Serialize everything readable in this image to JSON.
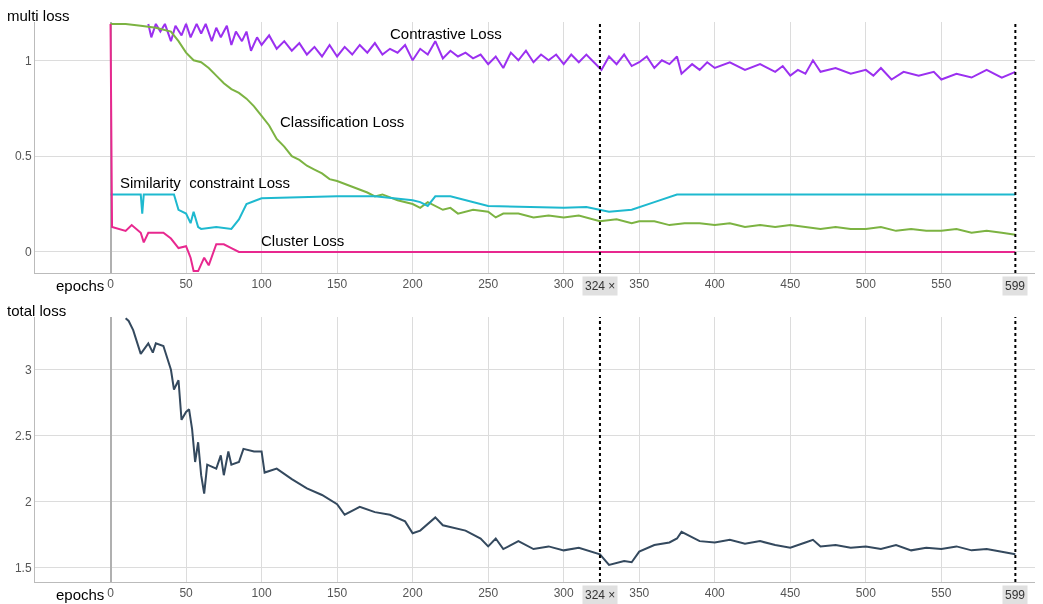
{
  "chart_data": [
    {
      "type": "line",
      "xlabel": "epochs",
      "ylabel": "multi loss",
      "xlim": [
        -50,
        612
      ],
      "ylim": [
        -0.11,
        1.2
      ],
      "xticks": [
        0,
        50,
        100,
        150,
        200,
        250,
        300,
        350,
        400,
        450,
        500,
        550
      ],
      "yticks": [
        0,
        0.5,
        1
      ],
      "grid": true,
      "series": [
        {
          "color": "#9b30f0",
          "x": [
            25,
            27,
            30,
            33,
            36,
            40,
            43,
            47,
            50,
            53,
            57,
            60,
            63,
            67,
            70,
            73,
            77,
            80,
            83,
            87,
            90,
            93,
            97,
            100,
            105,
            110,
            115,
            120,
            125,
            130,
            135,
            140,
            145,
            150,
            155,
            160,
            165,
            170,
            175,
            180,
            185,
            190,
            195,
            200,
            205,
            210,
            215,
            220,
            225,
            230,
            235,
            240,
            245,
            250,
            255,
            260,
            265,
            270,
            275,
            280,
            285,
            290,
            295,
            300,
            305,
            310,
            315,
            320,
            325,
            330,
            335,
            340,
            345,
            350,
            355,
            360,
            365,
            370,
            375,
            378,
            385,
            390,
            395,
            400,
            410,
            420,
            430,
            440,
            445,
            450,
            455,
            460,
            465,
            470,
            480,
            490,
            500,
            505,
            510,
            517,
            525,
            535,
            545,
            550,
            560,
            570,
            580,
            590,
            599
          ],
          "values": [
            1.19,
            1.12,
            1.19,
            1.15,
            1.19,
            1.1,
            1.18,
            1.13,
            1.19,
            1.12,
            1.19,
            1.14,
            1.19,
            1.1,
            1.17,
            1.12,
            1.18,
            1.08,
            1.15,
            1.1,
            1.15,
            1.05,
            1.12,
            1.08,
            1.13,
            1.06,
            1.1,
            1.05,
            1.09,
            1.03,
            1.07,
            1.02,
            1.08,
            1.02,
            1.07,
            1.03,
            1.08,
            1.04,
            1.09,
            1.03,
            1.06,
            1.04,
            1.08,
            1.0,
            1.06,
            1.03,
            1.1,
            1.01,
            1.05,
            1.02,
            1.04,
            1.01,
            1.03,
            0.98,
            1.02,
            0.96,
            1.04,
            1.0,
            1.05,
            0.99,
            1.03,
            1.0,
            1.03,
            0.98,
            1.03,
            0.99,
            1.03,
            0.99,
            0.95,
            1.02,
            0.98,
            1.03,
            0.97,
            0.99,
            1.02,
            0.96,
            1.0,
            0.98,
            1.02,
            0.93,
            0.98,
            0.95,
            0.99,
            0.96,
            0.99,
            0.95,
            0.98,
            0.94,
            0.97,
            0.92,
            0.95,
            0.93,
            1.0,
            0.94,
            0.96,
            0.93,
            0.95,
            0.92,
            0.96,
            0.9,
            0.94,
            0.92,
            0.94,
            0.9,
            0.93,
            0.91,
            0.95,
            0.91,
            0.94
          ]
        },
        {
          "color": "#7cb342",
          "x": [
            0,
            10,
            20,
            30,
            40,
            45,
            50,
            55,
            60,
            65,
            70,
            75,
            80,
            85,
            90,
            95,
            100,
            105,
            110,
            115,
            120,
            125,
            130,
            135,
            140,
            145,
            150,
            160,
            170,
            175,
            180,
            190,
            200,
            205,
            210,
            220,
            225,
            230,
            240,
            250,
            255,
            260,
            270,
            280,
            290,
            300,
            310,
            324,
            335,
            345,
            350,
            360,
            370,
            380,
            390,
            400,
            410,
            420,
            430,
            440,
            450,
            460,
            470,
            480,
            490,
            500,
            510,
            520,
            530,
            540,
            550,
            560,
            570,
            580,
            590,
            599
          ],
          "values": [
            1.19,
            1.19,
            1.18,
            1.17,
            1.15,
            1.1,
            1.04,
            1.0,
            0.99,
            0.96,
            0.92,
            0.88,
            0.85,
            0.83,
            0.8,
            0.76,
            0.71,
            0.66,
            0.59,
            0.55,
            0.5,
            0.48,
            0.45,
            0.43,
            0.41,
            0.38,
            0.37,
            0.34,
            0.31,
            0.29,
            0.3,
            0.27,
            0.25,
            0.23,
            0.26,
            0.22,
            0.23,
            0.2,
            0.22,
            0.21,
            0.18,
            0.2,
            0.2,
            0.18,
            0.19,
            0.18,
            0.19,
            0.16,
            0.17,
            0.15,
            0.16,
            0.16,
            0.14,
            0.15,
            0.15,
            0.14,
            0.15,
            0.13,
            0.14,
            0.13,
            0.14,
            0.13,
            0.12,
            0.13,
            0.12,
            0.12,
            0.13,
            0.11,
            0.12,
            0.11,
            0.11,
            0.12,
            0.1,
            0.11,
            0.1,
            0.09
          ]
        },
        {
          "color": "#1eb9cf",
          "x": [
            0,
            20,
            21,
            22,
            42,
            45,
            50,
            53,
            55,
            58,
            60,
            70,
            80,
            85,
            90,
            100,
            150,
            175,
            200,
            205,
            210,
            215,
            225,
            250,
            300,
            315,
            330,
            345,
            360,
            375,
            599
          ],
          "values": [
            0.3,
            0.3,
            0.2,
            0.3,
            0.3,
            0.22,
            0.2,
            0.15,
            0.21,
            0.13,
            0.12,
            0.13,
            0.12,
            0.17,
            0.25,
            0.28,
            0.29,
            0.29,
            0.27,
            0.26,
            0.24,
            0.29,
            0.29,
            0.24,
            0.23,
            0.235,
            0.21,
            0.22,
            0.26,
            0.3,
            0.3
          ]
        },
        {
          "color": "#e8288f",
          "x": [
            0,
            1,
            10,
            14,
            20,
            22,
            25,
            35,
            40,
            45,
            50,
            53,
            55,
            58,
            62,
            65,
            70,
            75,
            80,
            85,
            599
          ],
          "values": [
            1.19,
            0.13,
            0.11,
            0.14,
            0.1,
            0.05,
            0.1,
            0.1,
            0.07,
            0.02,
            0.03,
            -0.03,
            -0.1,
            -0.1,
            -0.03,
            -0.07,
            0.04,
            0.04,
            0.02,
            0.0,
            0.0
          ]
        }
      ],
      "annotations": [
        {
          "text": "Contrastive Loss",
          "x": 184,
          "y": 1.08
        },
        {
          "text": "Classification Loss",
          "x": 111,
          "y": 0.62
        },
        {
          "text": "Similarity  constraint Loss",
          "x": 5,
          "y": 0.3
        },
        {
          "text": "Cluster Loss",
          "x": 98,
          "y": 0.0
        }
      ],
      "ref_lines": [
        {
          "axis": "x",
          "value": 324,
          "label": "324 ×",
          "color": "#000000",
          "line_style": "dotted"
        },
        {
          "axis": "x",
          "value": 599,
          "label": "599",
          "color": "#000000",
          "line_style": "dotted"
        }
      ]
    },
    {
      "type": "line",
      "xlabel": "epochs",
      "ylabel": "total loss",
      "xlim": [
        -50,
        612
      ],
      "ylim": [
        1.39,
        3.4
      ],
      "xticks": [
        0,
        50,
        100,
        150,
        200,
        250,
        300,
        350,
        400,
        450,
        500,
        550
      ],
      "yticks": [
        1.5,
        2,
        2.5,
        3
      ],
      "grid": true,
      "series": [
        {
          "color": "#34495e",
          "x": [
            10,
            12,
            15,
            20,
            25,
            28,
            30,
            35,
            40,
            42,
            45,
            47,
            50,
            52,
            54,
            56,
            58,
            60,
            62,
            64,
            70,
            73,
            75,
            78,
            80,
            85,
            88,
            95,
            100,
            102,
            110,
            120,
            130,
            140,
            150,
            155,
            165,
            175,
            185,
            195,
            200,
            205,
            215,
            220,
            235,
            245,
            250,
            255,
            260,
            270,
            280,
            290,
            300,
            310,
            324,
            330,
            340,
            345,
            350,
            360,
            370,
            375,
            378,
            390,
            400,
            410,
            420,
            430,
            440,
            450,
            460,
            465,
            470,
            480,
            490,
            500,
            510,
            520,
            530,
            540,
            550,
            560,
            570,
            580,
            590,
            599
          ],
          "values": [
            3.39,
            3.37,
            3.3,
            3.12,
            3.2,
            3.13,
            3.2,
            3.18,
            3.0,
            2.85,
            2.92,
            2.62,
            2.68,
            2.7,
            2.55,
            2.3,
            2.45,
            2.2,
            2.06,
            2.28,
            2.25,
            2.35,
            2.2,
            2.38,
            2.28,
            2.3,
            2.4,
            2.38,
            2.38,
            2.22,
            2.25,
            2.17,
            2.1,
            2.05,
            1.98,
            1.9,
            1.96,
            1.92,
            1.9,
            1.85,
            1.76,
            1.78,
            1.88,
            1.82,
            1.78,
            1.72,
            1.66,
            1.72,
            1.64,
            1.7,
            1.64,
            1.66,
            1.63,
            1.65,
            1.6,
            1.52,
            1.55,
            1.54,
            1.62,
            1.67,
            1.69,
            1.72,
            1.77,
            1.7,
            1.69,
            1.71,
            1.68,
            1.7,
            1.67,
            1.65,
            1.69,
            1.71,
            1.66,
            1.67,
            1.65,
            1.66,
            1.64,
            1.67,
            1.63,
            1.65,
            1.64,
            1.66,
            1.63,
            1.64,
            1.62,
            1.6
          ]
        }
      ],
      "ref_lines": [
        {
          "axis": "x",
          "value": 324,
          "label": "324 ×",
          "color": "#000000",
          "line_style": "dotted"
        },
        {
          "axis": "x",
          "value": 599,
          "label": "599",
          "color": "#000000",
          "line_style": "dotted"
        }
      ]
    }
  ]
}
